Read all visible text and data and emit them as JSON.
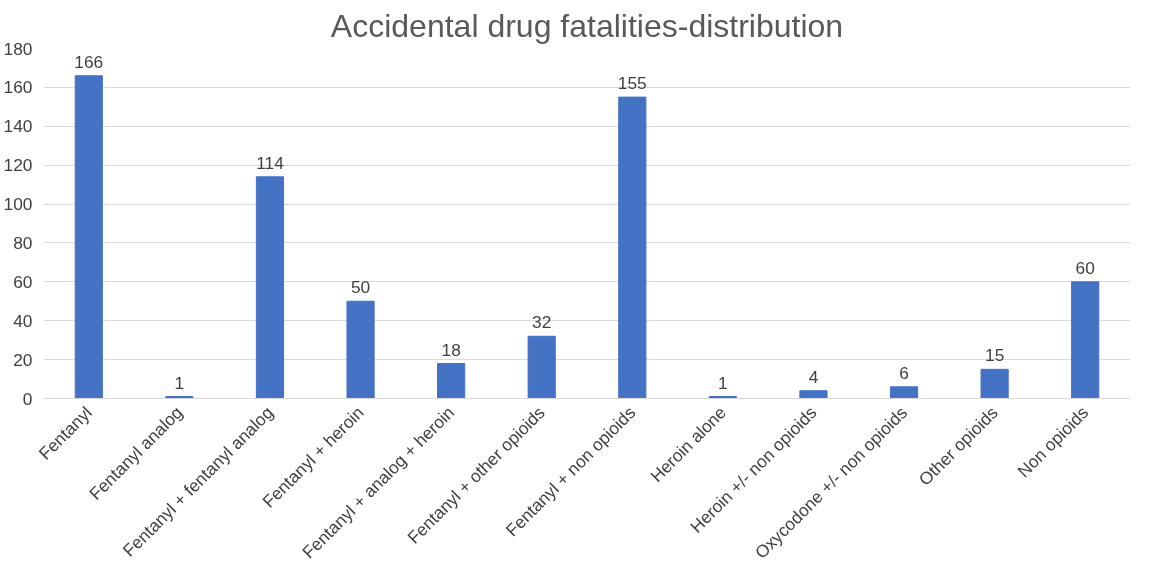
{
  "chart_data": {
    "type": "bar",
    "title": "Accidental drug fatalities-distribution",
    "categories": [
      "Fentanyl",
      "Fentanyl analog",
      "Fentanyl + fentanyl analog",
      "Fentanyl + heroin",
      "Fentanyl + analog + heroin",
      "Fentanyl + other opioids",
      "Fentanyl + non opioids",
      "Heroin alone",
      "Heroin +/- non opioids",
      "Oxycodone +/- non opioids",
      "Other opioids",
      "Non opioids"
    ],
    "values": [
      166,
      1,
      114,
      50,
      18,
      32,
      155,
      1,
      4,
      6,
      15,
      60
    ],
    "color": "#4472c4",
    "ylim": [
      0,
      180
    ],
    "yticks": [
      0,
      20,
      40,
      60,
      80,
      100,
      120,
      140,
      160,
      180
    ],
    "grid": "y",
    "data_labels": true
  }
}
